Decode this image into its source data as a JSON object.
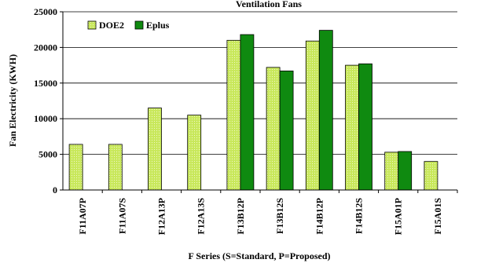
{
  "chart_data": {
    "type": "bar",
    "title": "Ventilation Fans",
    "xlabel": "F Series (S=Standard, P=Proposed)",
    "ylabel": "Fan Electricity (KWH)",
    "ylim": [
      0,
      25000
    ],
    "yticks": [
      0,
      5000,
      10000,
      15000,
      20000,
      25000
    ],
    "grid": "horizontal",
    "legend_position": "top-left",
    "categories": [
      "F11A07P",
      "F11A07S",
      "F12A13P",
      "F12A13S",
      "F13B12P",
      "F13B12S",
      "F14B12P",
      "F14B12S",
      "F15A01P",
      "F15A01S"
    ],
    "series": [
      {
        "name": "DOE2",
        "color": "#bfe24a",
        "values": [
          6400,
          6400,
          11500,
          10500,
          21000,
          17200,
          20900,
          17500,
          5300,
          4000
        ]
      },
      {
        "name": "Eplus",
        "color": "#0f8a10",
        "values": [
          null,
          null,
          null,
          null,
          21800,
          16700,
          22400,
          17700,
          5400,
          null
        ]
      }
    ]
  }
}
